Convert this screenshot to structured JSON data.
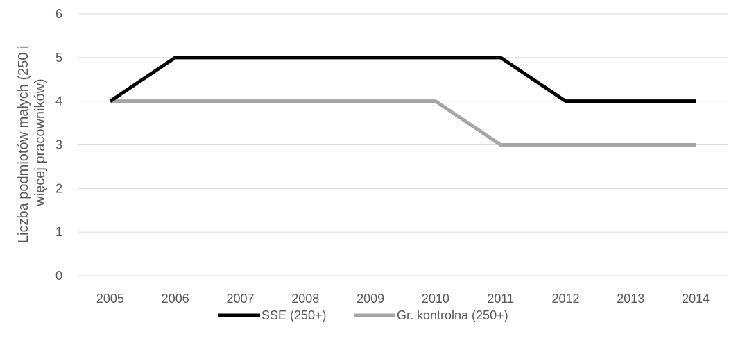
{
  "chart_data": {
    "type": "line",
    "title": "",
    "xlabel": "",
    "ylabel_lines": [
      "Liczba podmiotów małych (250 i",
      "więcej  pracowników)"
    ],
    "categories": [
      "2005",
      "2006",
      "2007",
      "2008",
      "2009",
      "2010",
      "2011",
      "2012",
      "2013",
      "2014"
    ],
    "ylim": [
      0,
      6
    ],
    "yticks": [
      "0",
      "1",
      "2",
      "3",
      "4",
      "5",
      "6"
    ],
    "grid": true,
    "legend_position": "bottom",
    "series": [
      {
        "name": "SSE (250+)",
        "color": "#000000",
        "values": [
          4,
          5,
          5,
          5,
          5,
          5,
          5,
          4,
          4,
          4
        ]
      },
      {
        "name": "Gr. kontrolna (250+)",
        "color": "#a6a6a6",
        "values": [
          4,
          4,
          4,
          4,
          4,
          4,
          3,
          3,
          3,
          3
        ]
      }
    ]
  }
}
